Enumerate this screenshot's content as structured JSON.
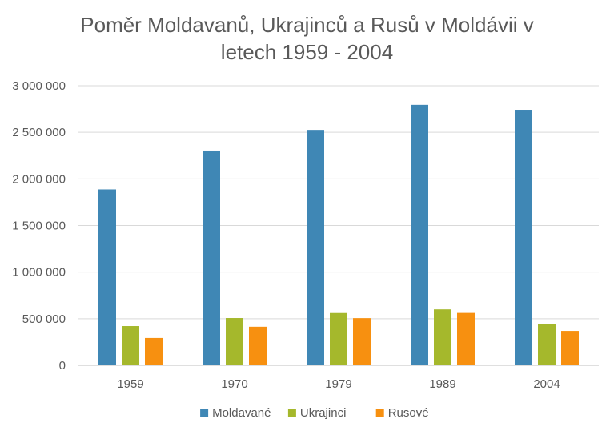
{
  "chart_data": {
    "type": "bar",
    "title_line1": "Poměr Moldavanů, Ukrajinců a Rusů v Moldávii v",
    "title_line2": "letech 1959 - 2004",
    "categories": [
      "1959",
      "1970",
      "1979",
      "1989",
      "2004"
    ],
    "series": [
      {
        "name": "Moldavané",
        "color": "#3f87b5",
        "values": [
          1887000,
          2304000,
          2526000,
          2795000,
          2742000
        ]
      },
      {
        "name": "Ukrajinci",
        "color": "#a5b82c",
        "values": [
          421000,
          507000,
          561000,
          600000,
          442000
        ]
      },
      {
        "name": "Rusové",
        "color": "#f79010",
        "values": [
          293000,
          414000,
          506000,
          562000,
          369000
        ]
      }
    ],
    "ylim": [
      0,
      3000000
    ],
    "yticks": [
      0,
      500000,
      1000000,
      1500000,
      2000000,
      2500000,
      3000000
    ],
    "ytick_labels": [
      "0",
      "500 000",
      "1 000 000",
      "1 500 000",
      "2 000 000",
      "2 500 000",
      "3 000 000"
    ],
    "grid": true,
    "legend_position": "bottom"
  }
}
